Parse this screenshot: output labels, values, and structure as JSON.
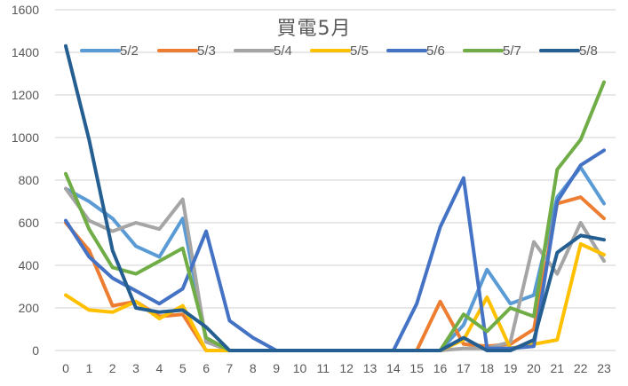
{
  "chart_data": {
    "type": "line",
    "title": "買電5月",
    "xlabel": "",
    "ylabel": "",
    "ylim": [
      0,
      1600
    ],
    "yticks": [
      0,
      200,
      400,
      600,
      800,
      1000,
      1200,
      1400,
      1600
    ],
    "grid": true,
    "legend_position": "top",
    "categories": [
      "0",
      "1",
      "2",
      "3",
      "4",
      "5",
      "6",
      "7",
      "8",
      "9",
      "10",
      "11",
      "12",
      "13",
      "14",
      "15",
      "16",
      "17",
      "18",
      "19",
      "20",
      "21",
      "22",
      "23"
    ],
    "series": [
      {
        "name": "5/2",
        "color": "#5B9BD5",
        "values": [
          760,
          700,
          620,
          490,
          440,
          620,
          50,
          0,
          0,
          0,
          0,
          0,
          0,
          0,
          0,
          0,
          0,
          120,
          380,
          220,
          260,
          720,
          860,
          690
        ]
      },
      {
        "name": "5/3",
        "color": "#ED7D31",
        "values": [
          600,
          470,
          210,
          230,
          160,
          170,
          0,
          0,
          0,
          0,
          0,
          0,
          0,
          0,
          0,
          0,
          230,
          30,
          20,
          30,
          100,
          690,
          720,
          620
        ]
      },
      {
        "name": "5/4",
        "color": "#A5A5A5",
        "values": [
          760,
          610,
          560,
          600,
          570,
          710,
          40,
          0,
          0,
          0,
          0,
          0,
          0,
          0,
          0,
          0,
          0,
          10,
          10,
          40,
          510,
          360,
          600,
          420
        ]
      },
      {
        "name": "5/5",
        "color": "#FFC000",
        "values": [
          260,
          190,
          180,
          230,
          150,
          210,
          0,
          0,
          0,
          0,
          0,
          0,
          0,
          0,
          0,
          0,
          0,
          50,
          250,
          10,
          30,
          50,
          500,
          450
        ]
      },
      {
        "name": "5/6",
        "color": "#4472C4",
        "values": [
          610,
          440,
          340,
          280,
          220,
          290,
          560,
          140,
          60,
          0,
          0,
          0,
          0,
          0,
          0,
          220,
          580,
          810,
          10,
          10,
          20,
          700,
          870,
          940
        ]
      },
      {
        "name": "5/7",
        "color": "#70AD47",
        "values": [
          830,
          570,
          390,
          360,
          420,
          480,
          60,
          0,
          0,
          0,
          0,
          0,
          0,
          0,
          0,
          0,
          0,
          170,
          90,
          200,
          160,
          850,
          990,
          1260
        ]
      },
      {
        "name": "5/8",
        "color": "#255E91",
        "values": [
          1430,
          990,
          470,
          200,
          180,
          190,
          110,
          0,
          0,
          0,
          0,
          0,
          0,
          0,
          0,
          0,
          0,
          60,
          0,
          0,
          50,
          460,
          540,
          520
        ]
      }
    ]
  }
}
